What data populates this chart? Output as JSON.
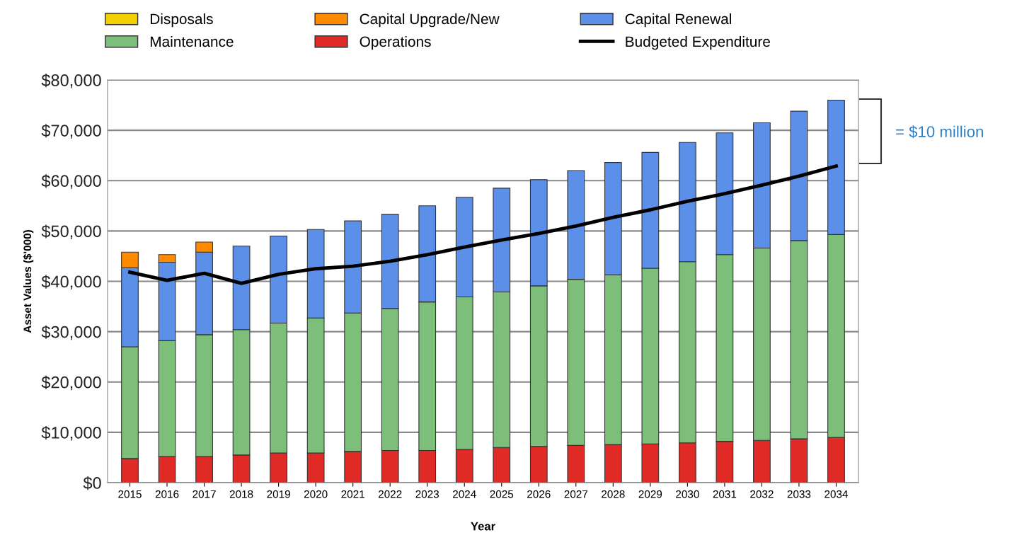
{
  "chart_data": {
    "type": "bar",
    "stacked": true,
    "xlabel": "Year",
    "ylabel": "Asset Values ($'000)",
    "categories": [
      "2015",
      "2016",
      "2017",
      "2018",
      "2019",
      "2020",
      "2021",
      "2022",
      "2023",
      "2024",
      "2025",
      "2026",
      "2027",
      "2028",
      "2029",
      "2030",
      "2031",
      "2032",
      "2033",
      "2034"
    ],
    "series": [
      {
        "name": "Operations",
        "color": "#e02a25",
        "values": [
          4800,
          5200,
          5200,
          5500,
          5900,
          5900,
          6200,
          6400,
          6400,
          6600,
          7000,
          7200,
          7400,
          7600,
          7700,
          7900,
          8200,
          8400,
          8700,
          9000
        ]
      },
      {
        "name": "Maintenance",
        "color": "#7dbf7a",
        "values": [
          22200,
          23000,
          24200,
          24900,
          25800,
          26800,
          27500,
          28200,
          29500,
          30300,
          30900,
          31900,
          33000,
          33700,
          34900,
          36000,
          37100,
          38200,
          39400,
          40300
        ]
      },
      {
        "name": "Capital Renewal",
        "color": "#5b8fe8",
        "values": [
          15700,
          15600,
          16400,
          16600,
          17300,
          17600,
          18300,
          18700,
          19100,
          19800,
          20600,
          21100,
          21600,
          22300,
          23000,
          23700,
          24200,
          24900,
          25700,
          26700
        ]
      },
      {
        "name": "Capital Upgrade/New",
        "color": "#ff8c00",
        "values": [
          3100,
          1500,
          2000,
          null,
          null,
          null,
          null,
          null,
          null,
          null,
          null,
          null,
          null,
          null,
          null,
          null,
          null,
          null,
          null,
          null
        ]
      },
      {
        "name": "Disposals",
        "color": "#f5d000",
        "values": [
          null,
          null,
          null,
          null,
          null,
          null,
          null,
          null,
          null,
          null,
          null,
          null,
          null,
          null,
          null,
          null,
          null,
          null,
          null,
          null
        ]
      },
      {
        "name": "Budgeted Expenditure",
        "type": "line",
        "color": "#000000",
        "values": [
          41800,
          40200,
          41600,
          39600,
          41400,
          42500,
          43000,
          44000,
          45300,
          46800,
          48200,
          49500,
          51000,
          52700,
          54200,
          55900,
          57400,
          59100,
          60900,
          62900
        ]
      }
    ],
    "ylim": [
      0,
      80000
    ],
    "yticks": [
      {
        "value": 0,
        "label": "$0"
      },
      {
        "value": 10000,
        "label": "$10,000"
      },
      {
        "value": 20000,
        "label": "$20,000"
      },
      {
        "value": 30000,
        "label": "$30,000"
      },
      {
        "value": 40000,
        "label": "$40,000"
      },
      {
        "value": 50000,
        "label": "$50,000"
      },
      {
        "value": 60000,
        "label": "$60,000"
      },
      {
        "value": 70000,
        "label": "$70,000"
      },
      {
        "value": 80000,
        "label": "$80,000"
      }
    ],
    "grid": "y",
    "legend": "top",
    "marker": "none",
    "line_style": "solid",
    "annotations": [
      "= $10 million"
    ]
  }
}
